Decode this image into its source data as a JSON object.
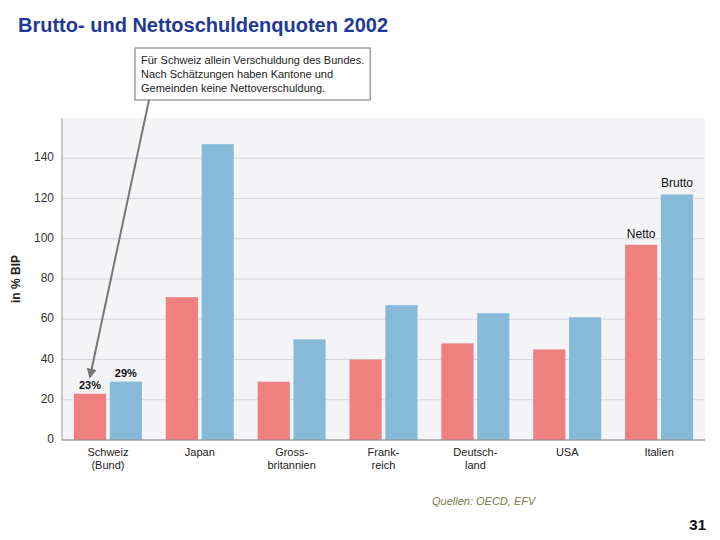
{
  "chart_data": {
    "type": "bar",
    "title": "Brutto- und Nettoschuldenquoten 2002",
    "ylabel": "in % BIP",
    "categories": [
      "Schweiz\n(Bund)",
      "Japan",
      "Gross-\nbritannien",
      "Frank-\nreich",
      "Deutsch-\nland",
      "USA",
      "Italien"
    ],
    "series": [
      {
        "name": "Netto",
        "color": "#f08080",
        "values": [
          23,
          71,
          29,
          40,
          48,
          45,
          97
        ],
        "value_labels": [
          "23%",
          null,
          null,
          null,
          null,
          null,
          null
        ]
      },
      {
        "name": "Brutto",
        "color": "#87b9d8",
        "values": [
          29,
          147,
          50,
          67,
          63,
          61,
          122
        ],
        "value_labels": [
          "29%",
          null,
          null,
          null,
          null,
          null,
          null
        ]
      }
    ],
    "ylim": [
      0,
      160
    ],
    "yticks": [
      0,
      20,
      40,
      60,
      80,
      100,
      120,
      140
    ],
    "grid": true,
    "annotations": [
      "Für Schweiz allein Verschuldung des Bundes.\nNach Schätzungen haben Kantone und\nGemeinden keine Nettoverschuldung.",
      "Quellen: OECD, EFV",
      "31"
    ]
  }
}
